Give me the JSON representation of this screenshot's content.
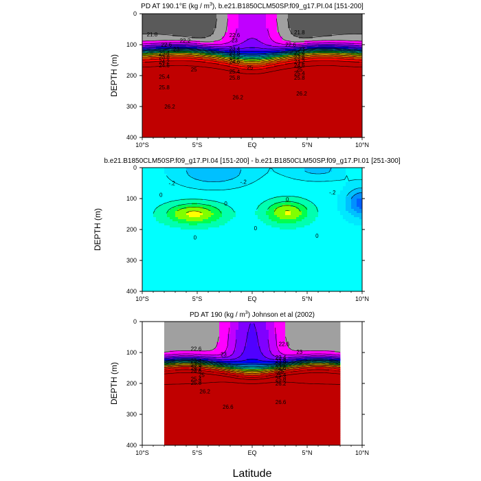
{
  "figure": {
    "xlabel": "Latitude"
  },
  "colors": {
    "density": [
      "#5a5a5a",
      "#a0a0a0",
      "#ff00ff",
      "#c000ff",
      "#8000ff",
      "#5000ff",
      "#0000ff",
      "#0040ff",
      "#0080ff",
      "#00a8ff",
      "#00d0ff",
      "#00ffe0",
      "#00ffa0",
      "#00ff40",
      "#80ff00",
      "#ffff00",
      "#ffc000",
      "#ff9000",
      "#ff6000",
      "#ff2000",
      "#ff0000",
      "#c00000"
    ],
    "difference": [
      "#0060ff",
      "#0090ff",
      "#00c0ff",
      "#00e8ff",
      "#00ffff",
      "#00ffb0",
      "#00ff50",
      "#80ff00",
      "#ffff00"
    ]
  },
  "chart_data": [
    {
      "type": "contour",
      "title_parts": [
        "PD AT 190.1°E (kg / m",
        "3",
        "), b.e21.B1850CLM50SP.f09_g17.PI.04 [151-200]"
      ],
      "xlabel": "",
      "ylabel": "DEPTH (m)",
      "xlim": [
        -10,
        10
      ],
      "ylim": [
        400,
        0
      ],
      "yticks": [
        "0",
        "100",
        "200",
        "300",
        "400"
      ],
      "xticks": [
        "10°S",
        "5°S",
        "EQ",
        "5°N",
        "10°N"
      ],
      "x_extent": [
        -10,
        10
      ],
      "levels": [
        21.0,
        21.4,
        21.8,
        22.2,
        22.6,
        23.0,
        23.4,
        23.6,
        23.8,
        24.0,
        24.2,
        24.4,
        24.6,
        24.8,
        25.0,
        25.2,
        25.4,
        25.6,
        25.8,
        26.0,
        26.2,
        26.4
      ],
      "contour_labels": [
        {
          "text": "21.8",
          "lat": -9.1,
          "depth": 67
        },
        {
          "text": "22.6",
          "lat": -7.8,
          "depth": 100
        },
        {
          "text": "22.2",
          "lat": -6.1,
          "depth": 87
        },
        {
          "text": "23",
          "lat": -6.9,
          "depth": 114
        },
        {
          "text": "23.4",
          "lat": -8.0,
          "depth": 127
        },
        {
          "text": "23.8",
          "lat": -8.0,
          "depth": 140
        },
        {
          "text": "24.2",
          "lat": -8.0,
          "depth": 154
        },
        {
          "text": "24.6",
          "lat": -8.0,
          "depth": 167
        },
        {
          "text": "25",
          "lat": -5.3,
          "depth": 180
        },
        {
          "text": "25.4",
          "lat": -8.0,
          "depth": 203
        },
        {
          "text": "25.8",
          "lat": -8.0,
          "depth": 238
        },
        {
          "text": "26.2",
          "lat": -7.5,
          "depth": 300
        },
        {
          "text": "22.6",
          "lat": -1.6,
          "depth": 69
        },
        {
          "text": "23",
          "lat": -1.6,
          "depth": 85
        },
        {
          "text": "23.4",
          "lat": -1.6,
          "depth": 113
        },
        {
          "text": "23.8",
          "lat": -1.6,
          "depth": 127
        },
        {
          "text": "24.2",
          "lat": -1.6,
          "depth": 140
        },
        {
          "text": "24.6",
          "lat": -1.6,
          "depth": 154
        },
        {
          "text": "25",
          "lat": -0.2,
          "depth": 173
        },
        {
          "text": "25.4",
          "lat": -1.6,
          "depth": 187
        },
        {
          "text": "25.8",
          "lat": -1.6,
          "depth": 207
        },
        {
          "text": "26.2",
          "lat": -1.3,
          "depth": 270
        },
        {
          "text": "21.8",
          "lat": 4.3,
          "depth": 60
        },
        {
          "text": "22.6",
          "lat": 3.5,
          "depth": 100
        },
        {
          "text": "23",
          "lat": 4.5,
          "depth": 113
        },
        {
          "text": "23.4",
          "lat": 4.3,
          "depth": 127
        },
        {
          "text": "23.8",
          "lat": 4.3,
          "depth": 140
        },
        {
          "text": "24.2",
          "lat": 4.3,
          "depth": 154
        },
        {
          "text": "24.6",
          "lat": 4.3,
          "depth": 167
        },
        {
          "text": "25",
          "lat": 4.3,
          "depth": 180
        },
        {
          "text": "25.4",
          "lat": 4.3,
          "depth": 192
        },
        {
          "text": "25.8",
          "lat": 4.3,
          "depth": 207
        },
        {
          "text": "26.2",
          "lat": 4.5,
          "depth": 258
        }
      ]
    },
    {
      "type": "contour",
      "title_parts": [
        "b.e21.B1850CLM50SP.f09_g17.PI.04 [151-200] - b.e21.B1850CLM50SP.f09_g17.PI.01 [251-300]"
      ],
      "xlabel": "",
      "ylabel": "DEPTH (m)",
      "xlim": [
        -10,
        10
      ],
      "ylim": [
        400,
        0
      ],
      "yticks": [
        "0",
        "100",
        "200",
        "300",
        "400"
      ],
      "xticks": [
        "10°S",
        "5°S",
        "EQ",
        "5°N",
        "10°N"
      ],
      "levels": [
        -0.4,
        -0.3,
        -0.2,
        -0.1,
        0.0,
        0.1,
        0.2,
        0.3,
        0.4
      ],
      "contour_labels": [
        {
          "text": "-.2",
          "lat": -7.3,
          "depth": 50
        },
        {
          "text": "-.2",
          "lat": -0.8,
          "depth": 45
        },
        {
          "text": "-.2",
          "lat": 7.3,
          "depth": 80
        },
        {
          "text": "0",
          "lat": -8.3,
          "depth": 88
        },
        {
          "text": "0",
          "lat": -2.4,
          "depth": 115
        },
        {
          "text": "0",
          "lat": 3.2,
          "depth": 102
        },
        {
          "text": "0",
          "lat": 0.3,
          "depth": 195
        },
        {
          "text": "0",
          "lat": -5.2,
          "depth": 225
        },
        {
          "text": "0",
          "lat": 5.9,
          "depth": 220
        }
      ]
    },
    {
      "type": "contour",
      "title_parts": [
        "PD AT 190 (kg / m",
        "3",
        ") Johnson et al (2002)"
      ],
      "xlabel": "Latitude",
      "ylabel": "DEPTH (m)",
      "xlim": [
        -10,
        10
      ],
      "ylim": [
        400,
        0
      ],
      "yticks": [
        "0",
        "100",
        "200",
        "300",
        "400"
      ],
      "xticks": [
        "10°S",
        "5°S",
        "EQ",
        "5°N",
        "10°N"
      ],
      "x_extent": [
        -8,
        8
      ],
      "levels": [
        21.0,
        21.4,
        21.8,
        22.2,
        22.6,
        23.0,
        23.4,
        23.6,
        23.8,
        24.0,
        24.2,
        24.4,
        24.6,
        24.8,
        25.0,
        25.2,
        25.4,
        25.6,
        25.8,
        26.0,
        26.2,
        26.4,
        26.6
      ],
      "contour_labels": [
        {
          "text": "22.6",
          "lat": -5.1,
          "depth": 88
        },
        {
          "text": "23",
          "lat": -2.6,
          "depth": 105
        },
        {
          "text": "23.4",
          "lat": -5.1,
          "depth": 127
        },
        {
          "text": "23.8",
          "lat": -5.1,
          "depth": 140
        },
        {
          "text": "24.2",
          "lat": -5.1,
          "depth": 150
        },
        {
          "text": "24.6",
          "lat": -5.1,
          "depth": 160
        },
        {
          "text": "25",
          "lat": -4.6,
          "depth": 172
        },
        {
          "text": "25.4",
          "lat": -5.1,
          "depth": 185
        },
        {
          "text": "25.8",
          "lat": -5.1,
          "depth": 198
        },
        {
          "text": "26.2",
          "lat": -4.3,
          "depth": 225
        },
        {
          "text": "26.6",
          "lat": -2.2,
          "depth": 275
        },
        {
          "text": "22.6",
          "lat": 2.9,
          "depth": 72
        },
        {
          "text": "23",
          "lat": 4.3,
          "depth": 98
        },
        {
          "text": "23.4",
          "lat": 2.6,
          "depth": 115
        },
        {
          "text": "23.8",
          "lat": 2.6,
          "depth": 127
        },
        {
          "text": "24.2",
          "lat": 2.6,
          "depth": 138
        },
        {
          "text": "24.6",
          "lat": 2.6,
          "depth": 150
        },
        {
          "text": "25",
          "lat": 2.6,
          "depth": 160
        },
        {
          "text": "25.4",
          "lat": 2.6,
          "depth": 172
        },
        {
          "text": "25.8",
          "lat": 2.6,
          "depth": 185
        },
        {
          "text": "26.2",
          "lat": 2.6,
          "depth": 200
        },
        {
          "text": "26.6",
          "lat": 2.6,
          "depth": 260
        }
      ]
    }
  ]
}
